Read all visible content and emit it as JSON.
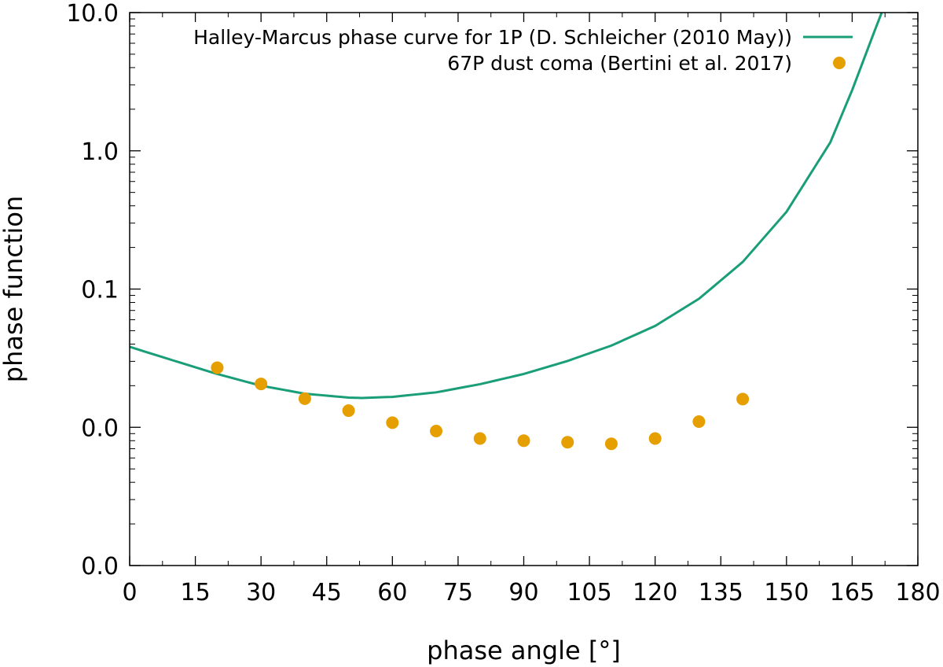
{
  "chart_data": {
    "type": "line+scatter",
    "xlabel": "phase angle [°]",
    "ylabel": "phase function",
    "xlim": [
      0,
      180
    ],
    "ylim": [
      0.001,
      10.0
    ],
    "yscale": "log",
    "grid": false,
    "legend_position": "top-right",
    "x_ticks": [
      {
        "value": 0,
        "label": "0"
      },
      {
        "value": 15,
        "label": "15"
      },
      {
        "value": 30,
        "label": "30"
      },
      {
        "value": 45,
        "label": "45"
      },
      {
        "value": 60,
        "label": "60"
      },
      {
        "value": 75,
        "label": "75"
      },
      {
        "value": 90,
        "label": "90"
      },
      {
        "value": 105,
        "label": "105"
      },
      {
        "value": 120,
        "label": "120"
      },
      {
        "value": 135,
        "label": "135"
      },
      {
        "value": 150,
        "label": "150"
      },
      {
        "value": 165,
        "label": "165"
      },
      {
        "value": 180,
        "label": "180"
      }
    ],
    "y_ticks": [
      {
        "value": 0.001,
        "label": "0.0"
      },
      {
        "value": 0.01,
        "label": "0.0"
      },
      {
        "value": 0.1,
        "label": "0.1"
      },
      {
        "value": 1.0,
        "label": "1.0"
      },
      {
        "value": 10.0,
        "label": "10.0"
      }
    ],
    "series": [
      {
        "name": "Halley-Marcus phase curve for 1P (D. Schleicher (2010 May))",
        "kind": "line",
        "color": "#1a9e78",
        "x": [
          0,
          10,
          20,
          30,
          40,
          50,
          53,
          60,
          70,
          80,
          90,
          100,
          110,
          120,
          130,
          140,
          150,
          160,
          165,
          170,
          172
        ],
        "y": [
          0.0382,
          0.0304,
          0.0243,
          0.02,
          0.0175,
          0.0164,
          0.0163,
          0.0166,
          0.0179,
          0.0205,
          0.0243,
          0.0302,
          0.039,
          0.0541,
          0.085,
          0.157,
          0.362,
          1.15,
          2.75,
          7.2,
          10.5
        ]
      },
      {
        "name": "67P dust coma (Bertini et al. 2017)",
        "kind": "scatter",
        "color": "#e69f00",
        "x": [
          20,
          30,
          40,
          50,
          60,
          70,
          80,
          90,
          100,
          110,
          120,
          130,
          140
        ],
        "y": [
          0.027,
          0.0206,
          0.0161,
          0.0132,
          0.0108,
          0.0094,
          0.0083,
          0.008,
          0.0078,
          0.0076,
          0.0083,
          0.011,
          0.016
        ]
      }
    ]
  }
}
